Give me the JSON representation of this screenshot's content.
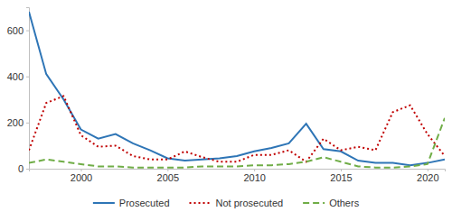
{
  "chart_data": {
    "type": "line",
    "x": [
      1997,
      1998,
      1999,
      2000,
      2001,
      2002,
      2003,
      2004,
      2005,
      2006,
      2007,
      2008,
      2009,
      2010,
      2011,
      2012,
      2013,
      2014,
      2015,
      2016,
      2017,
      2018,
      2019,
      2020,
      2021
    ],
    "series": [
      {
        "name": "Prosecuted",
        "color": "#2e75b6",
        "line_style": "solid",
        "values": [
          680,
          410,
          300,
          170,
          130,
          150,
          110,
          80,
          45,
          35,
          40,
          45,
          55,
          75,
          90,
          110,
          195,
          85,
          75,
          35,
          25,
          25,
          15,
          25,
          40
        ]
      },
      {
        "name": "Not prosecuted",
        "color": "#c00000",
        "line_style": "dotted",
        "values": [
          80,
          285,
          315,
          145,
          95,
          100,
          55,
          40,
          40,
          75,
          50,
          30,
          30,
          60,
          60,
          80,
          30,
          130,
          80,
          95,
          80,
          245,
          275,
          150,
          55
        ]
      },
      {
        "name": "Others",
        "color": "#70ad47",
        "line_style": "dashed",
        "values": [
          25,
          40,
          30,
          20,
          10,
          10,
          5,
          5,
          5,
          5,
          10,
          10,
          10,
          15,
          15,
          20,
          30,
          50,
          30,
          10,
          5,
          5,
          10,
          20,
          220
        ]
      }
    ],
    "xlim": [
      1997,
      2021
    ],
    "xticks": [
      2000,
      2005,
      2010,
      2015,
      2020
    ],
    "ylim": [
      0,
      700
    ],
    "yticks": [
      0,
      200,
      400,
      600
    ],
    "grid": false,
    "legend": "bottom"
  }
}
